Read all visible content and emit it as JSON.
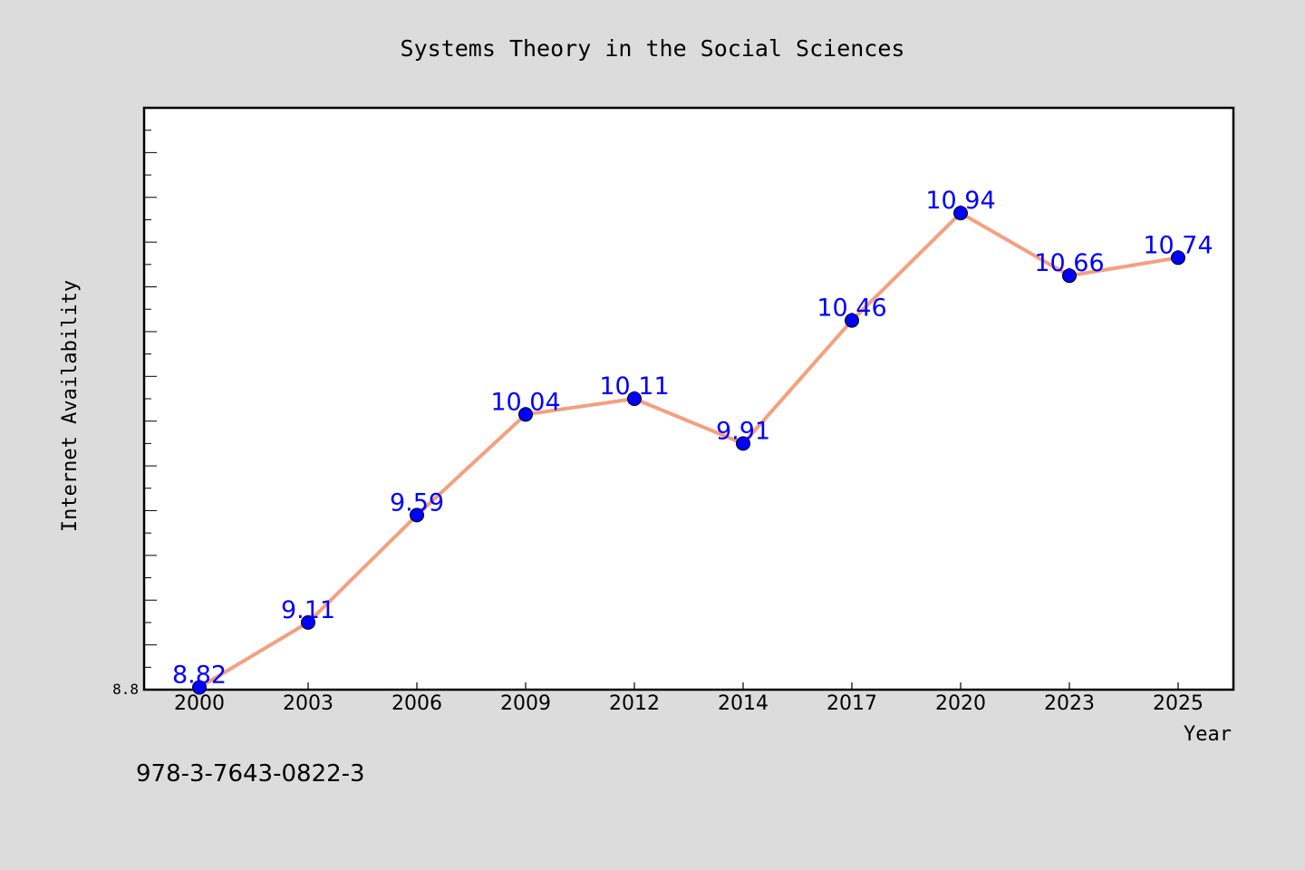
{
  "chart_data": {
    "type": "line",
    "title": "Systems Theory in the Social Sciences",
    "xlabel": "Year",
    "ylabel": "Internet Availability",
    "categories": [
      "2000",
      "2003",
      "2006",
      "2009",
      "2012",
      "2014",
      "2017",
      "2020",
      "2023",
      "2025"
    ],
    "values": [
      8.82,
      9.11,
      9.59,
      10.04,
      10.11,
      9.91,
      10.46,
      10.94,
      10.66,
      10.74
    ],
    "data_labels": [
      "8.82",
      "9.11",
      "9.59",
      "10.04",
      "10.11",
      "9.91",
      "10.46",
      "10.94",
      "10.66",
      "10.74"
    ],
    "y_tick_label": "8.8",
    "ylim": [
      8.81,
      11.41
    ],
    "grid": false,
    "legend": "none",
    "line_color": "#f4a07f",
    "marker_color": "#0000ff",
    "label_color": "#0000ff"
  },
  "footer_text": "978-3-7643-0822-3",
  "colors": {
    "background": "#dcdcdc",
    "plot_background": "#ffffff",
    "axis": "#000000"
  }
}
